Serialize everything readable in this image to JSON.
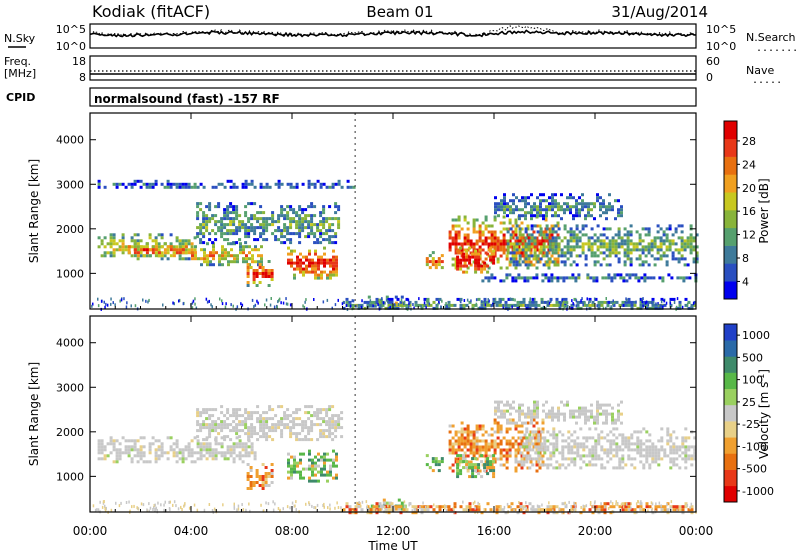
{
  "header": {
    "station": "Kodiak (fitACF)",
    "beam": "Beam 01",
    "date": "31/Aug/2014"
  },
  "noise_panel": {
    "left_label": "N.Sky",
    "left_ticks": [
      "10^5",
      "10^0"
    ],
    "right_ticks": [
      "10^5",
      "10^0"
    ],
    "right_label": "N.Search",
    "right_key": "......."
  },
  "freq_panel": {
    "left_label_1": "Freq.",
    "left_label_2": "[MHz]",
    "left_ticks": [
      "18",
      "8"
    ],
    "right_ticks": [
      "60",
      "0"
    ],
    "right_label": "Nave",
    "right_key": "....."
  },
  "cpid_panel": {
    "label": "CPID",
    "text": "normalsound (fast) -157 RF"
  },
  "chart_data": [
    {
      "type": "heatmap",
      "name": "power",
      "ylabel": "Slant Range [km]",
      "ylim": [
        200,
        4600
      ],
      "yticks": [
        "4000",
        "3000",
        "2000",
        "1000"
      ],
      "colorbar_label": "Power [dB]",
      "colorbar_ticks": [
        "28",
        "24",
        "20",
        "16",
        "12",
        "8",
        "4"
      ],
      "colors": [
        "#0000ee",
        "#2a4fc0",
        "#3e7a9a",
        "#56a06e",
        "#88b43a",
        "#c8c820",
        "#f0a020",
        "#e87010",
        "#e83818",
        "#e00000"
      ],
      "regions": [
        {
          "t": [
            0.3,
            4.2
          ],
          "r": [
            1300,
            1900
          ],
          "level": 0.5
        },
        {
          "t": [
            1.5,
            4.0
          ],
          "r": [
            1400,
            1700
          ],
          "level": 0.7
        },
        {
          "t": [
            4.0,
            6.8
          ],
          "r": [
            1200,
            1700
          ],
          "level": 0.55
        },
        {
          "t": [
            6.2,
            7.2
          ],
          "r": [
            750,
            1300
          ],
          "level": 0.75
        },
        {
          "t": [
            7.8,
            9.8
          ],
          "r": [
            900,
            1600
          ],
          "level": 0.8
        },
        {
          "t": [
            4.2,
            9.8
          ],
          "r": [
            1700,
            2600
          ],
          "level": 0.3
        },
        {
          "t": [
            0.3,
            10.5
          ],
          "r": [
            2900,
            3100
          ],
          "level": 0.15
        },
        {
          "t": [
            11.0,
            12.5
          ],
          "r": [
            250,
            500
          ],
          "level": 0.4
        },
        {
          "t": [
            13.3,
            14.0
          ],
          "r": [
            1100,
            1500
          ],
          "level": 0.6
        },
        {
          "t": [
            14.2,
            18.5
          ],
          "r": [
            1100,
            2300
          ],
          "level": 0.75
        },
        {
          "t": [
            14.5,
            16.0
          ],
          "r": [
            1000,
            1600
          ],
          "level": 0.9
        },
        {
          "t": [
            16.5,
            24.0
          ],
          "r": [
            1200,
            2100
          ],
          "level": 0.35
        },
        {
          "t": [
            16.0,
            21.0
          ],
          "r": [
            2200,
            2800
          ],
          "level": 0.25
        },
        {
          "t": [
            15.5,
            24.0
          ],
          "r": [
            850,
            1000
          ],
          "level": 0.2
        },
        {
          "t": [
            10.0,
            24.0
          ],
          "r": [
            200,
            450
          ],
          "level": 0.3
        }
      ]
    },
    {
      "type": "heatmap",
      "name": "velocity",
      "ylabel": "Slant Range [km]",
      "xlabel": "Time UT",
      "xticks": [
        "00:00",
        "04:00",
        "08:00",
        "12:00",
        "16:00",
        "20:00",
        "00:00"
      ],
      "xlim": [
        0,
        24
      ],
      "ylim": [
        200,
        4600
      ],
      "yticks": [
        "4000",
        "3000",
        "2000",
        "1000"
      ],
      "colorbar_label": "Velocity [m s^-1]",
      "colorbar_ticks": [
        "1000",
        "500",
        "100",
        "25",
        "-25",
        "-100",
        "-500",
        "-1000"
      ],
      "colors": [
        "#2040c8",
        "#2a6aa8",
        "#3e8a6a",
        "#58b848",
        "#9ad060",
        "#c8c8c8",
        "#e8d088",
        "#f0a030",
        "#e87010",
        "#e83818",
        "#e00000"
      ],
      "regions": [
        {
          "t": [
            0.3,
            6.5
          ],
          "r": [
            1300,
            1900
          ],
          "kind": "ground"
        },
        {
          "t": [
            6.2,
            7.2
          ],
          "r": [
            750,
            1300
          ],
          "kind": "neg"
        },
        {
          "t": [
            7.8,
            9.8
          ],
          "r": [
            900,
            1600
          ],
          "kind": "pos"
        },
        {
          "t": [
            4.2,
            10.0
          ],
          "r": [
            1800,
            2600
          ],
          "kind": "ground"
        },
        {
          "t": [
            11.0,
            12.5
          ],
          "r": [
            250,
            500
          ],
          "kind": "pos"
        },
        {
          "t": [
            13.3,
            14.0
          ],
          "r": [
            1100,
            1500
          ],
          "kind": "pos"
        },
        {
          "t": [
            14.2,
            18.0
          ],
          "r": [
            1100,
            2300
          ],
          "kind": "neg"
        },
        {
          "t": [
            14.5,
            16.0
          ],
          "r": [
            1000,
            1500
          ],
          "kind": "pos"
        },
        {
          "t": [
            17.0,
            24.0
          ],
          "r": [
            1200,
            2100
          ],
          "kind": "ground"
        },
        {
          "t": [
            16.0,
            21.0
          ],
          "r": [
            2200,
            2700
          ],
          "kind": "ground"
        },
        {
          "t": [
            10.0,
            24.0
          ],
          "r": [
            200,
            420
          ],
          "kind": "neg"
        }
      ]
    }
  ]
}
